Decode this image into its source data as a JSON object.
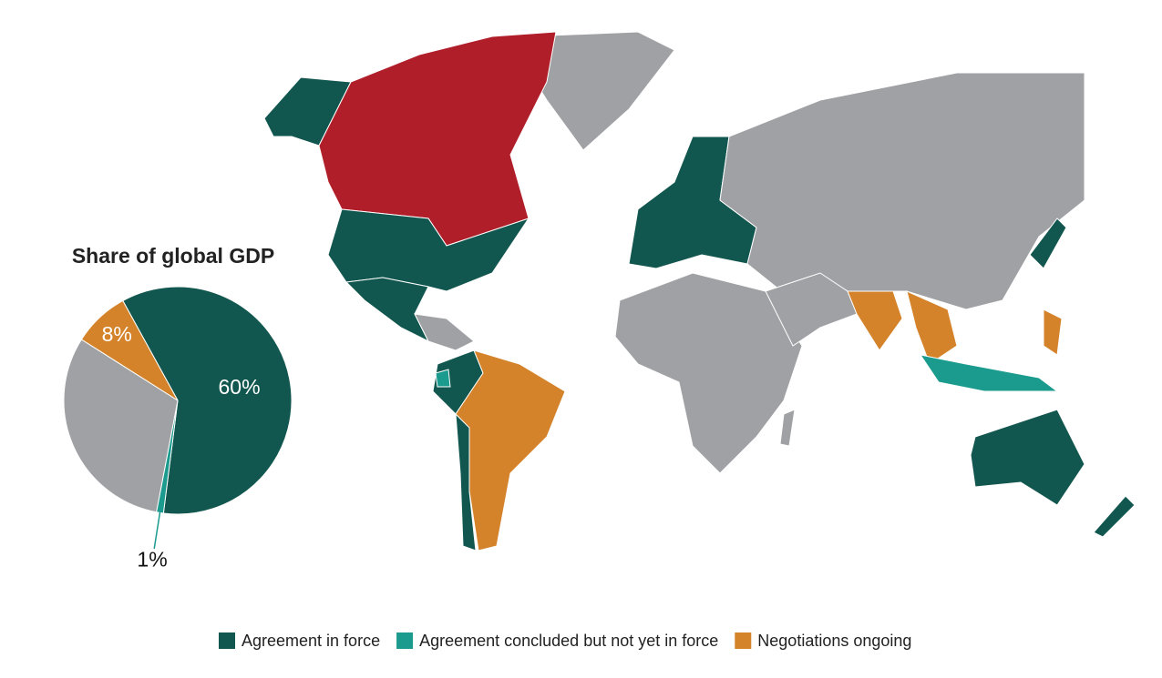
{
  "chart_data": {
    "type": "pie",
    "title": "Share of global GDP",
    "categories": [
      "Agreement in force",
      "Agreement concluded but not yet in force",
      null,
      "Negotiations ongoing"
    ],
    "values": [
      60,
      1,
      31,
      8
    ],
    "value_labels": [
      "60%",
      "1%",
      null,
      "8%"
    ],
    "colors": [
      "#12574f",
      "#1a9b8e",
      "#a0a1a4",
      "#d4832a"
    ]
  }
}
